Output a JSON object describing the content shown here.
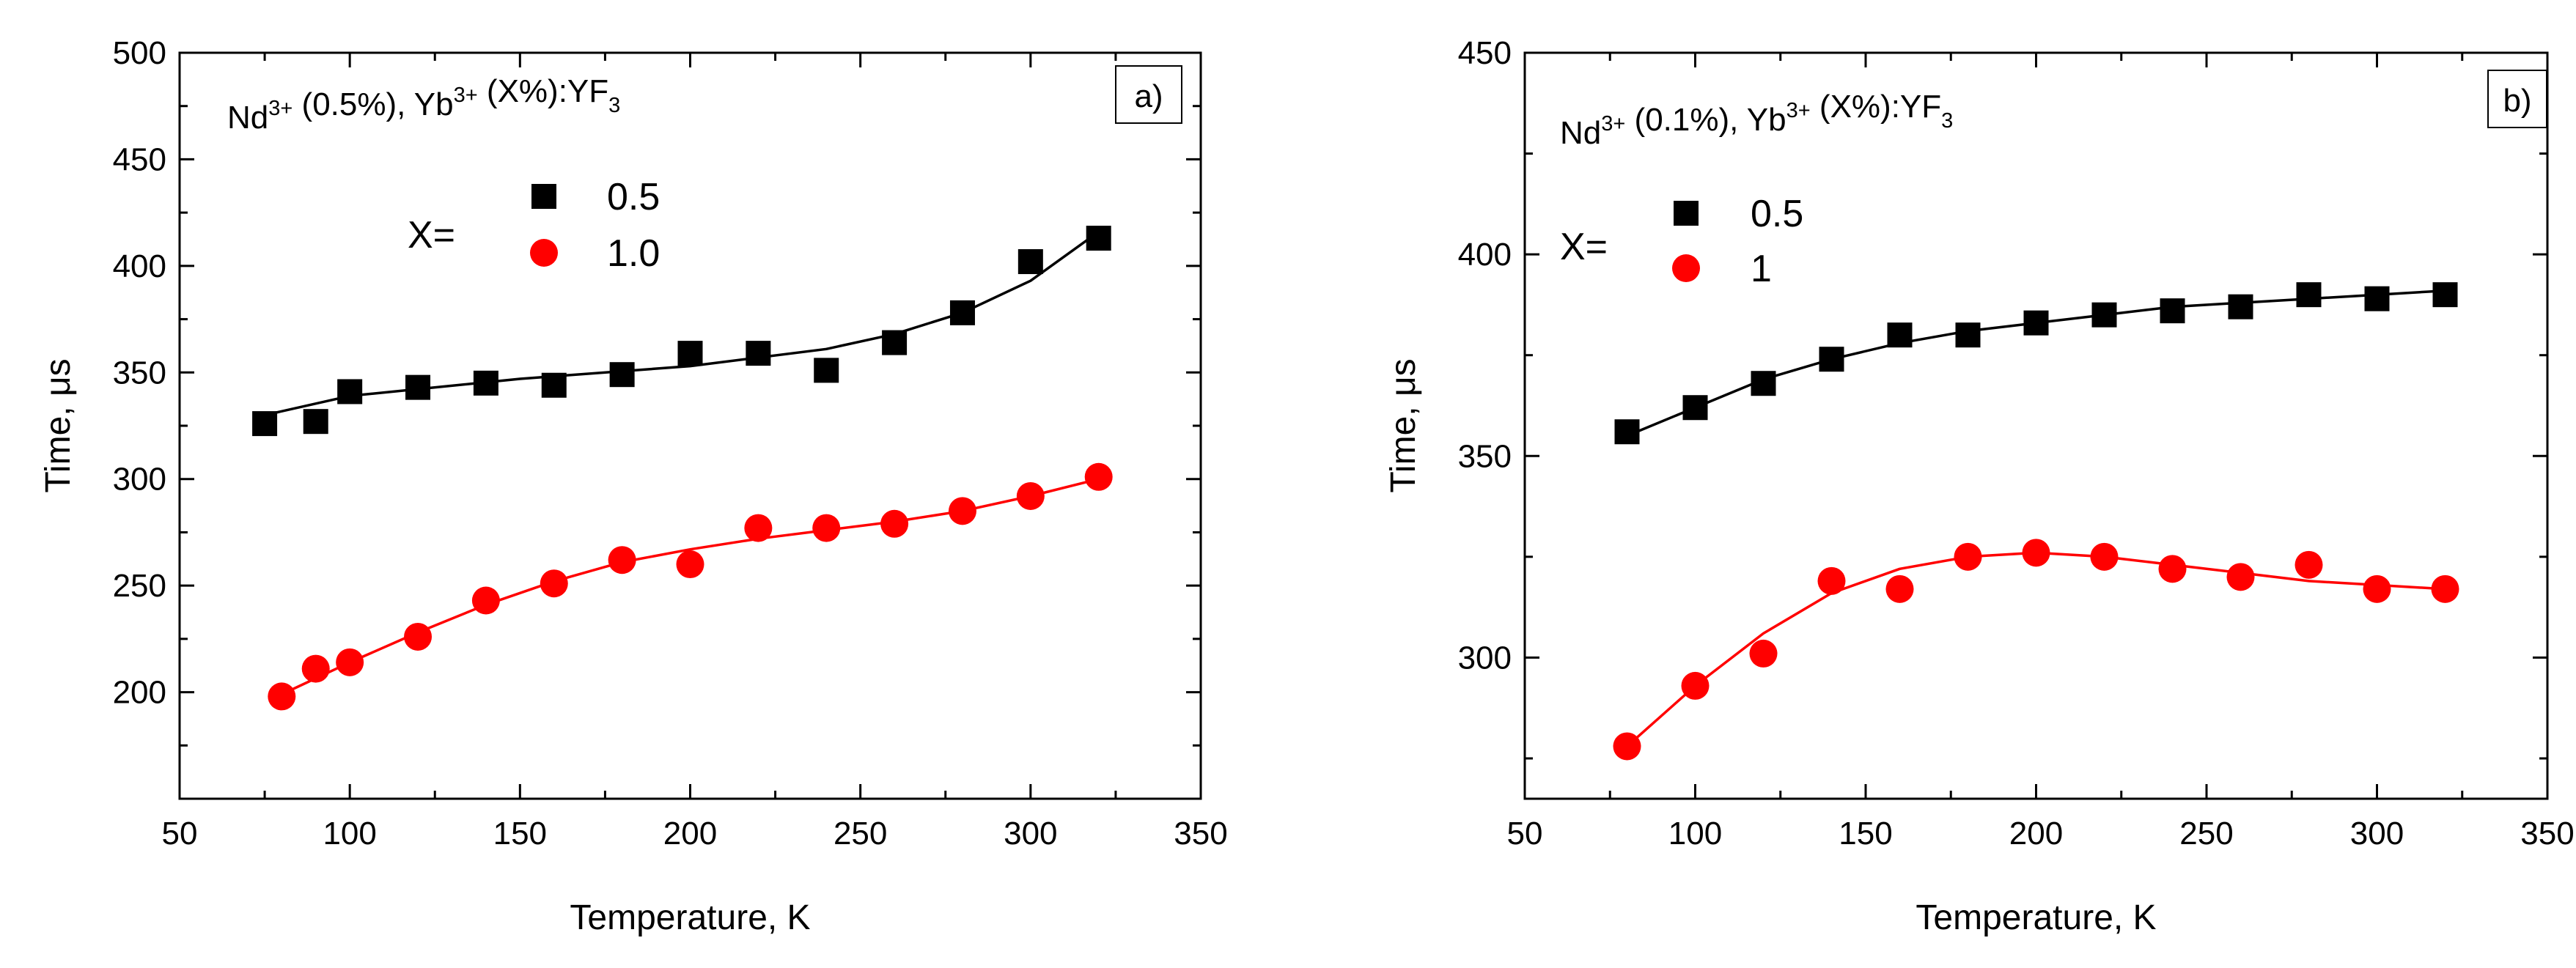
{
  "chart_data": [
    {
      "type": "scatter",
      "panel_label": "a)",
      "title": {
        "parts": [
          {
            "t": "Nd"
          },
          {
            "t": "3+",
            "s": "sup"
          },
          {
            "t": " (0.5%), Yb"
          },
          {
            "t": "3+",
            "s": "sup"
          },
          {
            "t": " (X%):YF"
          },
          {
            "t": "3",
            "s": "sub"
          }
        ]
      },
      "xlabel": "Temperature, K",
      "ylabel": "Time, μs",
      "xlim": [
        50,
        350
      ],
      "ylim": [
        150,
        500
      ],
      "xticks": [
        50,
        100,
        150,
        200,
        250,
        300,
        350
      ],
      "yticks": [
        200,
        250,
        300,
        350,
        400,
        450,
        500
      ],
      "legend_prefix": "X=",
      "series": [
        {
          "name": "0.5",
          "marker": "square",
          "color": "#000000",
          "x": [
            75,
            90,
            100,
            120,
            140,
            160,
            180,
            200,
            220,
            240,
            260,
            280,
            300,
            320
          ],
          "y": [
            326,
            327,
            341,
            343,
            345,
            344,
            349,
            359,
            359,
            351,
            364,
            378,
            402,
            413
          ],
          "fit": [
            [
              75,
              330
            ],
            [
              100,
              339
            ],
            [
              150,
              347
            ],
            [
              200,
              353
            ],
            [
              240,
              361
            ],
            [
              260,
              368
            ],
            [
              280,
              378
            ],
            [
              300,
              393
            ],
            [
              320,
              416
            ]
          ]
        },
        {
          "name": "1.0",
          "marker": "circle",
          "color": "#ff0000",
          "x": [
            80,
            90,
            100,
            120,
            140,
            160,
            180,
            200,
            220,
            240,
            260,
            280,
            300,
            320
          ],
          "y": [
            198,
            211,
            214,
            226,
            243,
            251,
            262,
            260,
            277,
            277,
            279,
            285,
            292,
            301
          ],
          "fit": [
            [
              80,
              199
            ],
            [
              100,
              214
            ],
            [
              120,
              228
            ],
            [
              140,
              241
            ],
            [
              160,
              252
            ],
            [
              180,
              261
            ],
            [
              200,
              267
            ],
            [
              220,
              272
            ],
            [
              240,
              276
            ],
            [
              260,
              280
            ],
            [
              280,
              285
            ],
            [
              300,
              292
            ],
            [
              320,
              300
            ]
          ]
        }
      ]
    },
    {
      "type": "scatter",
      "panel_label": "b)",
      "title": {
        "parts": [
          {
            "t": "Nd"
          },
          {
            "t": "3+",
            "s": "sup"
          },
          {
            "t": " (0.1%), Yb"
          },
          {
            "t": "3+",
            "s": "sup"
          },
          {
            "t": " (X%):YF"
          },
          {
            "t": "3",
            "s": "sub"
          }
        ]
      },
      "xlabel": "Temperature, K",
      "ylabel": "Time, μs",
      "xlim": [
        50,
        350
      ],
      "ylim": [
        265,
        450
      ],
      "xticks": [
        50,
        100,
        150,
        200,
        250,
        300,
        350
      ],
      "yticks": [
        300,
        350,
        400,
        450
      ],
      "legend_prefix": "X=",
      "series": [
        {
          "name": "0.5",
          "marker": "square",
          "color": "#000000",
          "x": [
            80,
            100,
            120,
            140,
            160,
            180,
            200,
            220,
            240,
            260,
            280,
            300,
            320
          ],
          "y": [
            356,
            362,
            368,
            374,
            380,
            380,
            383,
            385,
            386,
            387,
            390,
            389,
            390
          ],
          "fit": [
            [
              80,
              355
            ],
            [
              100,
              362
            ],
            [
              120,
              369
            ],
            [
              140,
              374
            ],
            [
              160,
              378
            ],
            [
              180,
              381
            ],
            [
              200,
              383
            ],
            [
              220,
              385
            ],
            [
              240,
              387
            ],
            [
              260,
              388
            ],
            [
              280,
              389
            ],
            [
              300,
              390
            ],
            [
              320,
              391
            ]
          ]
        },
        {
          "name": "1",
          "marker": "circle",
          "color": "#ff0000",
          "x": [
            80,
            100,
            120,
            140,
            160,
            180,
            200,
            220,
            240,
            260,
            280,
            300,
            320
          ],
          "y": [
            278,
            293,
            301,
            319,
            317,
            325,
            326,
            325,
            322,
            320,
            323,
            317,
            317
          ],
          "fit": [
            [
              80,
              278
            ],
            [
              100,
              293
            ],
            [
              120,
              306
            ],
            [
              140,
              316
            ],
            [
              160,
              322
            ],
            [
              180,
              325
            ],
            [
              200,
              326
            ],
            [
              220,
              325
            ],
            [
              240,
              323
            ],
            [
              260,
              321
            ],
            [
              280,
              319
            ],
            [
              300,
              318
            ],
            [
              320,
              317
            ]
          ]
        }
      ]
    }
  ]
}
